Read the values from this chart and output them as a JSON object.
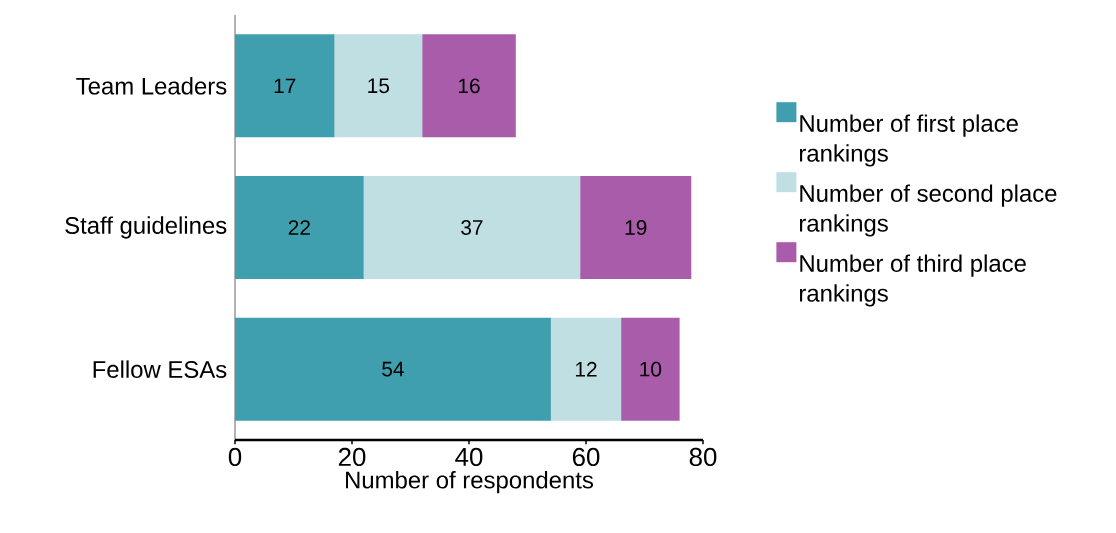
{
  "chart_data": {
    "type": "bar",
    "orientation": "horizontal",
    "stacked": true,
    "categories": [
      "Team Leaders",
      "Staff guidelines",
      "Fellow ESAs"
    ],
    "series": [
      {
        "name": "Number of first place rankings",
        "color": "#409fae",
        "values": [
          17,
          22,
          54
        ]
      },
      {
        "name": "Number of second place rankings",
        "color": "#bfdfe3",
        "values": [
          15,
          37,
          12
        ]
      },
      {
        "name": "Number of third place rankings",
        "color": "#a95ca9",
        "values": [
          16,
          19,
          10
        ]
      }
    ],
    "xlabel": "Number of respondents",
    "xlim": [
      0,
      80
    ],
    "xticks": [
      0,
      20,
      40,
      60,
      80
    ],
    "data_labels": true,
    "legend": "right",
    "grid": false
  }
}
